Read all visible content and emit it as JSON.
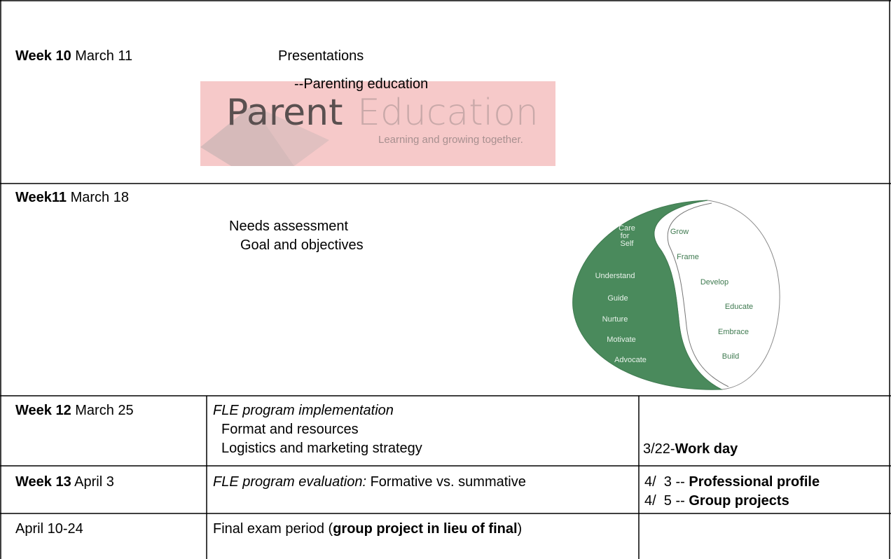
{
  "rows": [
    {
      "week": "Week 10",
      "date": "March 11",
      "lines": [
        "Presentations",
        "--Parenting education"
      ],
      "logo": {
        "brand": "Parent",
        "brand_accent": "Education",
        "tagline": "Learning and growing together."
      }
    },
    {
      "week": "Week11",
      "date": "March 18",
      "lines": [
        "Needs assessment",
        "Goal and objectives"
      ],
      "diagram": {
        "left": [
          "Care",
          "for",
          "Self",
          "Understand",
          "Guide",
          "Nurture",
          "Motivate",
          "Advocate"
        ],
        "right": [
          "Grow",
          "Frame",
          "Develop",
          "Educate",
          "Embrace",
          "Build"
        ]
      }
    },
    {
      "week": "Week 12",
      "date": "March 25",
      "topic": "FLE program implementation",
      "lines": [
        "Format and resources",
        "Logistics and marketing strategy"
      ],
      "notes": [
        {
          "date": "3/22-",
          "text": "Work day"
        }
      ]
    },
    {
      "week": "Week 13",
      "date": "April 3",
      "topic": "FLE program evaluation:",
      "detail": "Formative vs. summative",
      "notes": [
        {
          "date": "4/  3 --",
          "text": "Professional profile"
        },
        {
          "date": "4/  5 --",
          "text": "Group projects"
        }
      ]
    },
    {
      "date": "April 10-24",
      "content": {
        "before": "Final exam period (",
        "bold": "group project in lieu of final",
        "after": ")"
      }
    }
  ]
}
